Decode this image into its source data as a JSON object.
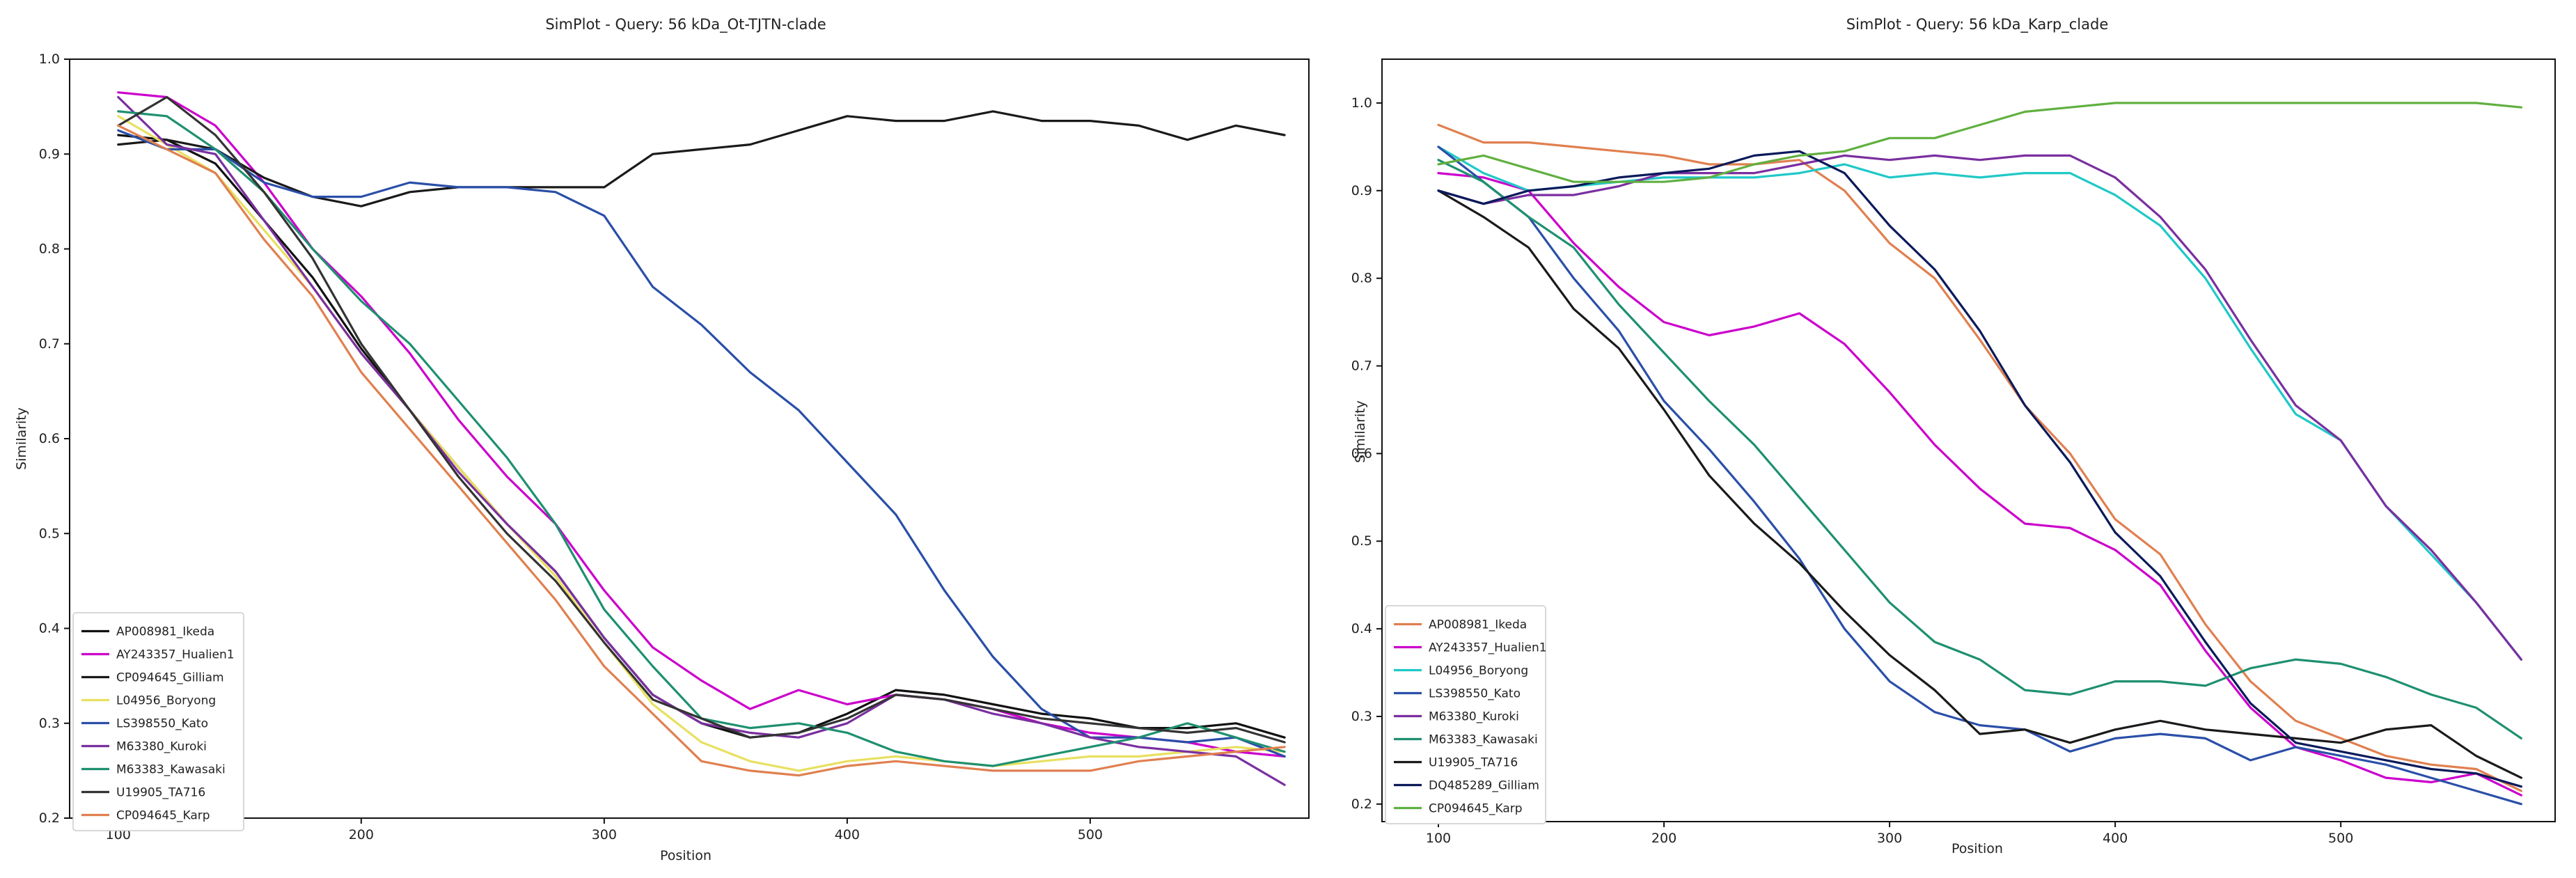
{
  "chart_data": [
    {
      "type": "line",
      "title": "SimPlot - Query: 56 kDa_Ot-TJTN-clade",
      "xlabel": "Position",
      "ylabel": "Similarity",
      "xlim": [
        80,
        590
      ],
      "ylim": [
        0.2,
        1.0
      ],
      "xticks": [
        100,
        200,
        300,
        400,
        500
      ],
      "yticks": [
        0.2,
        0.3,
        0.4,
        0.5,
        0.6,
        0.7,
        0.8,
        0.9,
        1.0
      ],
      "legend_position": "lower-left",
      "x": [
        100,
        120,
        140,
        160,
        180,
        200,
        220,
        240,
        260,
        280,
        300,
        320,
        340,
        360,
        380,
        400,
        420,
        440,
        460,
        480,
        500,
        520,
        540,
        560,
        580
      ],
      "series": [
        {
          "name": "AP008981_Ikeda",
          "color": "#111111",
          "values": [
            0.92,
            0.915,
            0.89,
            0.83,
            0.77,
            0.695,
            0.63,
            0.57,
            0.51,
            0.46,
            0.39,
            0.33,
            0.3,
            0.285,
            0.29,
            0.31,
            0.335,
            0.33,
            0.32,
            0.31,
            0.305,
            0.295,
            0.295,
            0.3,
            0.285
          ]
        },
        {
          "name": "AY243357_Hualien1",
          "color": "#cc00cc",
          "values": [
            0.965,
            0.96,
            0.93,
            0.87,
            0.8,
            0.75,
            0.69,
            0.62,
            0.56,
            0.51,
            0.44,
            0.38,
            0.345,
            0.315,
            0.335,
            0.32,
            0.33,
            0.325,
            0.315,
            0.3,
            0.29,
            0.285,
            0.28,
            0.27,
            0.265
          ]
        },
        {
          "name": "CP094645_Gilliam",
          "color": "#1a1a1a",
          "values": [
            0.91,
            0.915,
            0.905,
            0.875,
            0.855,
            0.845,
            0.86,
            0.865,
            0.865,
            0.865,
            0.865,
            0.9,
            0.905,
            0.91,
            0.925,
            0.94,
            0.935,
            0.935,
            0.945,
            0.935,
            0.935,
            0.93,
            0.915,
            0.93,
            0.92
          ]
        },
        {
          "name": "L04956_Boryong",
          "color": "#e8e060",
          "values": [
            0.94,
            0.91,
            0.88,
            0.82,
            0.76,
            0.69,
            0.63,
            0.57,
            0.51,
            0.455,
            0.385,
            0.32,
            0.28,
            0.26,
            0.25,
            0.26,
            0.265,
            0.26,
            0.255,
            0.26,
            0.265,
            0.265,
            0.27,
            0.275,
            0.27
          ]
        },
        {
          "name": "LS398550_Kato",
          "color": "#2a4fa8",
          "values": [
            0.925,
            0.905,
            0.905,
            0.87,
            0.855,
            0.855,
            0.87,
            0.865,
            0.865,
            0.86,
            0.835,
            0.76,
            0.72,
            0.67,
            0.63,
            0.575,
            0.52,
            0.44,
            0.37,
            0.315,
            0.285,
            0.285,
            0.28,
            0.285,
            0.265
          ]
        },
        {
          "name": "M63380_Kuroki",
          "color": "#7a2fa0",
          "values": [
            0.96,
            0.91,
            0.9,
            0.83,
            0.76,
            0.69,
            0.63,
            0.565,
            0.51,
            0.46,
            0.39,
            0.33,
            0.3,
            0.29,
            0.285,
            0.3,
            0.33,
            0.325,
            0.31,
            0.3,
            0.285,
            0.275,
            0.27,
            0.265,
            0.235
          ]
        },
        {
          "name": "M63383_Kawasaki",
          "color": "#1e9070",
          "values": [
            0.945,
            0.94,
            0.905,
            0.86,
            0.8,
            0.745,
            0.7,
            0.64,
            0.58,
            0.51,
            0.42,
            0.36,
            0.305,
            0.295,
            0.3,
            0.29,
            0.27,
            0.26,
            0.255,
            0.265,
            0.275,
            0.285,
            0.3,
            0.285,
            0.27
          ]
        },
        {
          "name": "U19905_TA716",
          "color": "#333333",
          "values": [
            0.93,
            0.96,
            0.92,
            0.86,
            0.79,
            0.7,
            0.63,
            0.56,
            0.5,
            0.45,
            0.385,
            0.325,
            0.305,
            0.285,
            0.29,
            0.305,
            0.33,
            0.325,
            0.315,
            0.305,
            0.3,
            0.295,
            0.29,
            0.295,
            0.28
          ]
        },
        {
          "name": "CP094645_Karp",
          "color": "#e08050",
          "values": [
            0.93,
            0.905,
            0.88,
            0.81,
            0.75,
            0.67,
            0.61,
            0.55,
            0.49,
            0.43,
            0.36,
            0.31,
            0.26,
            0.25,
            0.245,
            0.255,
            0.26,
            0.255,
            0.25,
            0.25,
            0.25,
            0.26,
            0.265,
            0.27,
            0.275
          ]
        }
      ]
    },
    {
      "type": "line",
      "title": "SimPlot - Query: 56 kDa_Karp_clade",
      "xlabel": "Position",
      "ylabel": "Similarity",
      "xlim": [
        75,
        595
      ],
      "ylim": [
        0.18,
        1.05
      ],
      "xticks": [
        100,
        200,
        300,
        400,
        500
      ],
      "yticks": [
        0.2,
        0.3,
        0.4,
        0.5,
        0.6,
        0.7,
        0.8,
        0.9,
        1.0
      ],
      "legend_position": "lower-left",
      "x": [
        100,
        120,
        140,
        160,
        180,
        200,
        220,
        240,
        260,
        280,
        300,
        320,
        340,
        360,
        380,
        400,
        420,
        440,
        460,
        480,
        500,
        520,
        540,
        560,
        580
      ],
      "series": [
        {
          "name": "AP008981_Ikeda",
          "color": "#e08050",
          "values": [
            0.975,
            0.955,
            0.955,
            0.95,
            0.945,
            0.94,
            0.93,
            0.93,
            0.935,
            0.9,
            0.84,
            0.8,
            0.73,
            0.655,
            0.6,
            0.525,
            0.485,
            0.405,
            0.34,
            0.295,
            0.275,
            0.255,
            0.245,
            0.24,
            0.215
          ]
        },
        {
          "name": "AY243357_Hualien1",
          "color": "#cc00cc",
          "values": [
            0.92,
            0.915,
            0.9,
            0.84,
            0.79,
            0.75,
            0.735,
            0.745,
            0.76,
            0.725,
            0.67,
            0.61,
            0.56,
            0.52,
            0.515,
            0.49,
            0.45,
            0.375,
            0.31,
            0.265,
            0.25,
            0.23,
            0.225,
            0.235,
            0.21
          ]
        },
        {
          "name": "L04956_Boryong",
          "color": "#20c8c8",
          "values": [
            0.95,
            0.92,
            0.9,
            0.905,
            0.91,
            0.915,
            0.915,
            0.915,
            0.92,
            0.93,
            0.915,
            0.92,
            0.915,
            0.92,
            0.92,
            0.895,
            0.86,
            0.8,
            0.72,
            0.645,
            0.615,
            0.54,
            0.485,
            0.43,
            0.365
          ]
        },
        {
          "name": "LS398550_Kato",
          "color": "#2a4fa8",
          "values": [
            0.95,
            0.91,
            0.87,
            0.8,
            0.74,
            0.66,
            0.605,
            0.545,
            0.48,
            0.4,
            0.34,
            0.305,
            0.29,
            0.285,
            0.26,
            0.275,
            0.28,
            0.275,
            0.25,
            0.265,
            0.255,
            0.245,
            0.23,
            0.215,
            0.2
          ]
        },
        {
          "name": "M63380_Kuroki",
          "color": "#7a2fa0",
          "values": [
            0.9,
            0.885,
            0.895,
            0.895,
            0.905,
            0.92,
            0.92,
            0.92,
            0.93,
            0.94,
            0.935,
            0.94,
            0.935,
            0.94,
            0.94,
            0.915,
            0.87,
            0.81,
            0.73,
            0.655,
            0.615,
            0.54,
            0.49,
            0.43,
            0.365
          ]
        },
        {
          "name": "M63383_Kawasaki",
          "color": "#1e9070",
          "values": [
            0.935,
            0.91,
            0.87,
            0.835,
            0.77,
            0.715,
            0.66,
            0.61,
            0.55,
            0.49,
            0.43,
            0.385,
            0.365,
            0.33,
            0.325,
            0.34,
            0.34,
            0.335,
            0.355,
            0.365,
            0.36,
            0.345,
            0.325,
            0.31,
            0.275
          ]
        },
        {
          "name": "U19905_TA716",
          "color": "#1a1a1a",
          "values": [
            0.9,
            0.87,
            0.835,
            0.765,
            0.72,
            0.65,
            0.575,
            0.52,
            0.475,
            0.42,
            0.37,
            0.33,
            0.28,
            0.285,
            0.27,
            0.285,
            0.295,
            0.285,
            0.28,
            0.275,
            0.27,
            0.285,
            0.29,
            0.255,
            0.23
          ]
        },
        {
          "name": "DQ485289_Gilliam",
          "color": "#0a1a5a",
          "values": [
            0.9,
            0.885,
            0.9,
            0.905,
            0.915,
            0.92,
            0.925,
            0.94,
            0.945,
            0.92,
            0.86,
            0.81,
            0.74,
            0.655,
            0.59,
            0.51,
            0.46,
            0.385,
            0.315,
            0.27,
            0.26,
            0.25,
            0.24,
            0.235,
            0.22
          ]
        },
        {
          "name": "CP094645_Karp",
          "color": "#60b040",
          "values": [
            0.93,
            0.94,
            0.925,
            0.91,
            0.91,
            0.91,
            0.915,
            0.93,
            0.94,
            0.945,
            0.96,
            0.96,
            0.975,
            0.99,
            0.995,
            1.0,
            1.0,
            1.0,
            1.0,
            1.0,
            1.0,
            1.0,
            1.0,
            1.0,
            0.995
          ]
        }
      ]
    }
  ]
}
